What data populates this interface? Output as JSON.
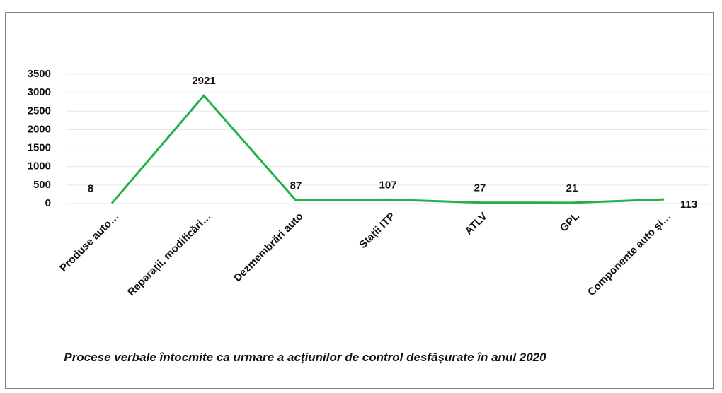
{
  "chart_data": {
    "type": "line",
    "title": "Procese verbale întocmite ca urmare a acțiunilor de control desfășurate în anul 2020",
    "categories": [
      "Produse auto…",
      "Reparații, modificări…",
      "Dezmembrări auto",
      "Stații ITP",
      "ATLV",
      "GPL",
      "Componente auto și…"
    ],
    "series": [
      {
        "name": null,
        "color": "#22b04a",
        "values": [
          8,
          2921,
          87,
          107,
          27,
          21,
          113
        ]
      }
    ],
    "ylim": [
      0,
      3500
    ],
    "yticks": [
      0,
      500,
      1000,
      1500,
      2000,
      2500,
      3000,
      3500
    ],
    "grid": true
  }
}
